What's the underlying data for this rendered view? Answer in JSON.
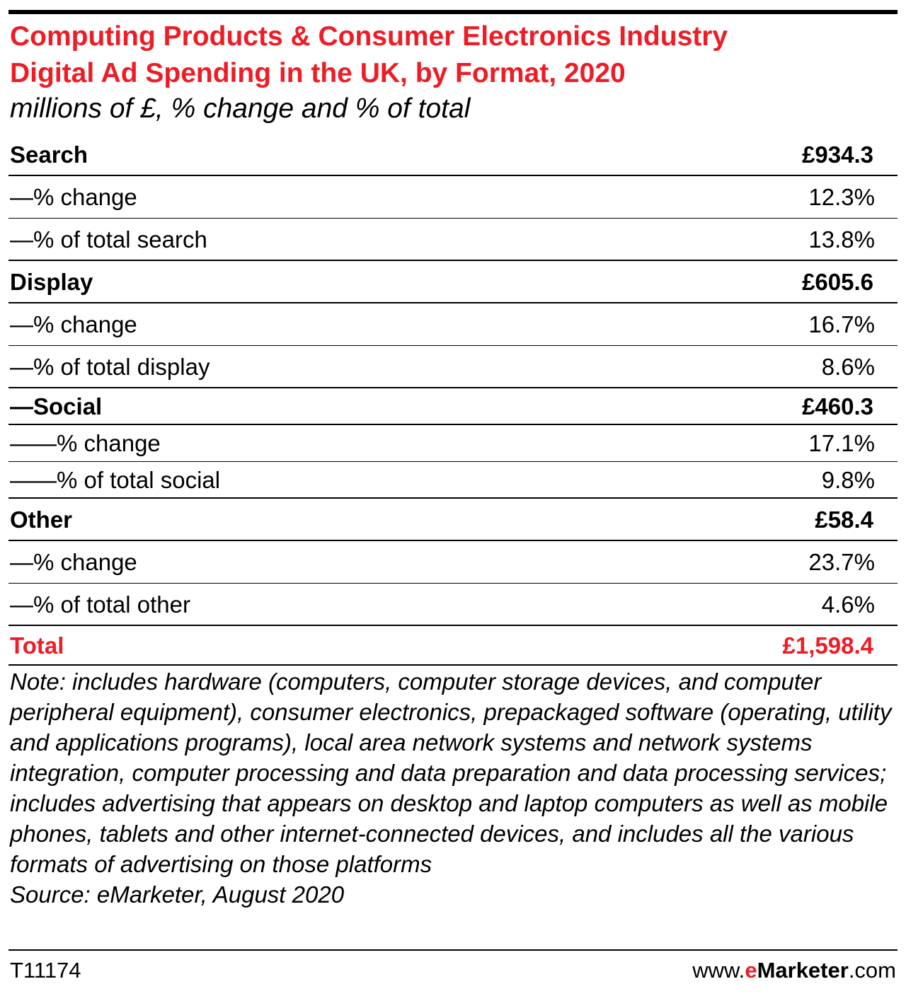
{
  "chart_data": {
    "type": "table",
    "title_line1": "Computing Products & Consumer Electronics Industry",
    "title_line2": "Digital Ad Spending in the UK, by Format, 2020",
    "subtitle": "millions of £, % change and % of total",
    "rows": [
      {
        "kind": "header",
        "label": "Search",
        "value": "£934.3"
      },
      {
        "kind": "sub",
        "label": "—% change",
        "value": "12.3%"
      },
      {
        "kind": "sub",
        "label": "—% of total search",
        "value": "13.8%"
      },
      {
        "kind": "header",
        "label": "Display",
        "value": "£605.6"
      },
      {
        "kind": "sub",
        "label": "—% change",
        "value": "16.7%"
      },
      {
        "kind": "sub",
        "label": "—% of total display",
        "value": "8.6%"
      },
      {
        "kind": "header",
        "label": "—Social",
        "value": "£460.3"
      },
      {
        "kind": "sub",
        "label": "——% change",
        "value": "17.1%"
      },
      {
        "kind": "sub",
        "label": "——% of total social",
        "value": "9.8%"
      },
      {
        "kind": "header",
        "label": "Other",
        "value": "£58.4"
      },
      {
        "kind": "sub",
        "label": "—% change",
        "value": "23.7%"
      },
      {
        "kind": "sub",
        "label": "—% of total other",
        "value": "4.6%"
      },
      {
        "kind": "total",
        "label": "Total",
        "value": "£1,598.4"
      }
    ],
    "note": "Note: includes hardware (computers, computer storage devices, and computer peripheral equipment), consumer electronics, prepackaged software (operating, utility and applications programs), local area network systems and network systems integration, computer processing and data preparation and data processing services; includes advertising that appears on desktop and laptop computers as well as mobile phones, tablets and other internet-connected devices, and includes all the various formats of advertising on those platforms",
    "source": "Source: eMarketer, August 2020",
    "chart_id": "T11174",
    "brand": {
      "prefix": "www.",
      "e": "e",
      "marketer": "Marketer",
      "suffix": ".com"
    }
  },
  "colors": {
    "accent": "#ee1c25",
    "text": "#000000",
    "rule": "#000000"
  }
}
